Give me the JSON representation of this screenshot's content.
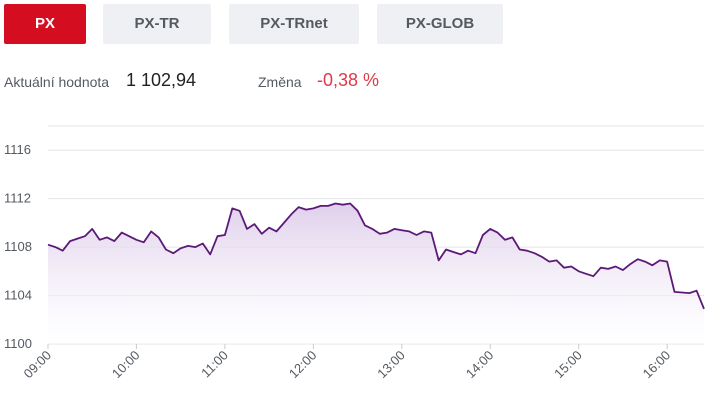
{
  "tabs": [
    {
      "label": "PX",
      "active": true
    },
    {
      "label": "PX-TR",
      "active": false
    },
    {
      "label": "PX-TRnet",
      "active": false
    },
    {
      "label": "PX-GLOB",
      "active": false
    }
  ],
  "stats": {
    "current_label": "Aktuální hodnota",
    "current_value": "1 102,94",
    "change_label": "Změna",
    "change_value": "-0,38 %"
  },
  "colors": {
    "accent": "#d40e20",
    "tab_bg": "#eef0f3",
    "line": "#5c1a78",
    "fill": "#e6d9ef",
    "negative": "#e0384b"
  },
  "chart_data": {
    "type": "area",
    "ylim": [
      1100,
      1118
    ],
    "yticks": [
      "1100",
      "1104",
      "1108",
      "1112",
      "1116"
    ],
    "xticks": [
      "09:00",
      "10:00",
      "11:00",
      "12:00",
      "13:00",
      "14:00",
      "15:00",
      "16:00"
    ],
    "series": [
      {
        "x": [
          "09:00",
          "09:05",
          "09:10",
          "09:15",
          "09:20",
          "09:25",
          "09:30",
          "09:35",
          "09:40",
          "09:45",
          "09:50",
          "09:55",
          "10:00",
          "10:05",
          "10:10",
          "10:15",
          "10:20",
          "10:25",
          "10:30",
          "10:35",
          "10:40",
          "10:45",
          "10:50",
          "10:55",
          "11:00",
          "11:05",
          "11:10",
          "11:15",
          "11:20",
          "11:25",
          "11:30",
          "11:35",
          "11:40",
          "11:45",
          "11:50",
          "11:55",
          "12:00",
          "12:05",
          "12:10",
          "12:15",
          "12:20",
          "12:25",
          "12:30",
          "12:35",
          "12:40",
          "12:45",
          "12:50",
          "12:55",
          "13:00",
          "13:05",
          "13:10",
          "13:15",
          "13:20",
          "13:25",
          "13:30",
          "13:35",
          "13:40",
          "13:45",
          "13:50",
          "13:55",
          "14:00",
          "14:05",
          "14:10",
          "14:15",
          "14:20",
          "14:25",
          "14:30",
          "14:35",
          "14:40",
          "14:45",
          "14:50",
          "14:55",
          "15:00",
          "15:05",
          "15:10",
          "15:15",
          "15:20",
          "15:25",
          "15:30",
          "15:35",
          "15:40",
          "15:45",
          "15:50",
          "15:55",
          "16:00",
          "16:05",
          "16:15",
          "16:20",
          "16:25"
        ],
        "values": [
          1108.2,
          1108.0,
          1107.7,
          1108.5,
          1108.7,
          1108.9,
          1109.5,
          1108.6,
          1108.8,
          1108.5,
          1109.2,
          1108.9,
          1108.6,
          1108.4,
          1109.3,
          1108.8,
          1107.8,
          1107.5,
          1107.9,
          1108.1,
          1108.0,
          1108.3,
          1107.4,
          1108.9,
          1109.0,
          1111.2,
          1111.0,
          1109.5,
          1109.9,
          1109.1,
          1109.6,
          1109.3,
          1110.0,
          1110.7,
          1111.3,
          1111.1,
          1111.2,
          1111.4,
          1111.4,
          1111.6,
          1111.5,
          1111.6,
          1111.0,
          1109.8,
          1109.5,
          1109.1,
          1109.2,
          1109.5,
          1109.4,
          1109.3,
          1109.0,
          1109.3,
          1109.2,
          1106.9,
          1107.8,
          1107.6,
          1107.4,
          1107.7,
          1107.5,
          1109.0,
          1109.5,
          1109.2,
          1108.6,
          1108.8,
          1107.8,
          1107.7,
          1107.5,
          1107.2,
          1106.8,
          1106.9,
          1106.3,
          1106.4,
          1106.0,
          1105.8,
          1105.6,
          1106.3,
          1106.2,
          1106.4,
          1106.1,
          1106.6,
          1107.0,
          1106.8,
          1106.5,
          1106.9,
          1106.8,
          1104.3,
          1104.2,
          1104.4,
          1102.9
        ]
      }
    ]
  }
}
